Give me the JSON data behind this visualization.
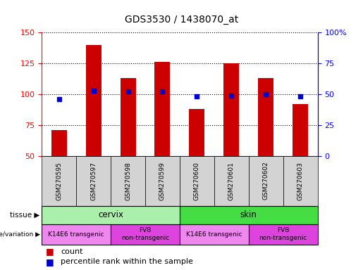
{
  "title": "GDS3530 / 1438070_at",
  "samples": [
    "GSM270595",
    "GSM270597",
    "GSM270598",
    "GSM270599",
    "GSM270600",
    "GSM270601",
    "GSM270602",
    "GSM270603"
  ],
  "counts": [
    71,
    140,
    113,
    126,
    88,
    125,
    113,
    92
  ],
  "percentile_ranks": [
    46,
    53,
    52,
    52,
    48,
    49,
    50,
    48
  ],
  "ylim_left": [
    50,
    150
  ],
  "ylim_right": [
    0,
    100
  ],
  "yticks_left": [
    50,
    75,
    100,
    125,
    150
  ],
  "yticks_right": [
    0,
    25,
    50,
    75,
    100
  ],
  "ytick_labels_right": [
    "0",
    "25",
    "50",
    "75",
    "100%"
  ],
  "bar_color": "#cc0000",
  "dot_color": "#0000cc",
  "background_color": "#ffffff",
  "plot_bg": "#ffffff",
  "tissue_groups": [
    {
      "label": "cervix",
      "start": 0,
      "end": 4,
      "color": "#aaf0aa"
    },
    {
      "label": "skin",
      "start": 4,
      "end": 8,
      "color": "#44dd44"
    }
  ],
  "genotype_groups": [
    {
      "label": "K14E6 transgenic",
      "start": 0,
      "end": 2,
      "color": "#ee88ee"
    },
    {
      "label": "FVB\nnon-transgenic",
      "start": 2,
      "end": 4,
      "color": "#dd44dd"
    },
    {
      "label": "K14E6 transgenic",
      "start": 4,
      "end": 6,
      "color": "#ee88ee"
    },
    {
      "label": "FVB\nnon-transgenic",
      "start": 6,
      "end": 8,
      "color": "#dd44dd"
    }
  ],
  "legend_count_label": "count",
  "legend_pct_label": "percentile rank within the sample",
  "tissue_label": "tissue",
  "genotype_label": "genotype/variation"
}
